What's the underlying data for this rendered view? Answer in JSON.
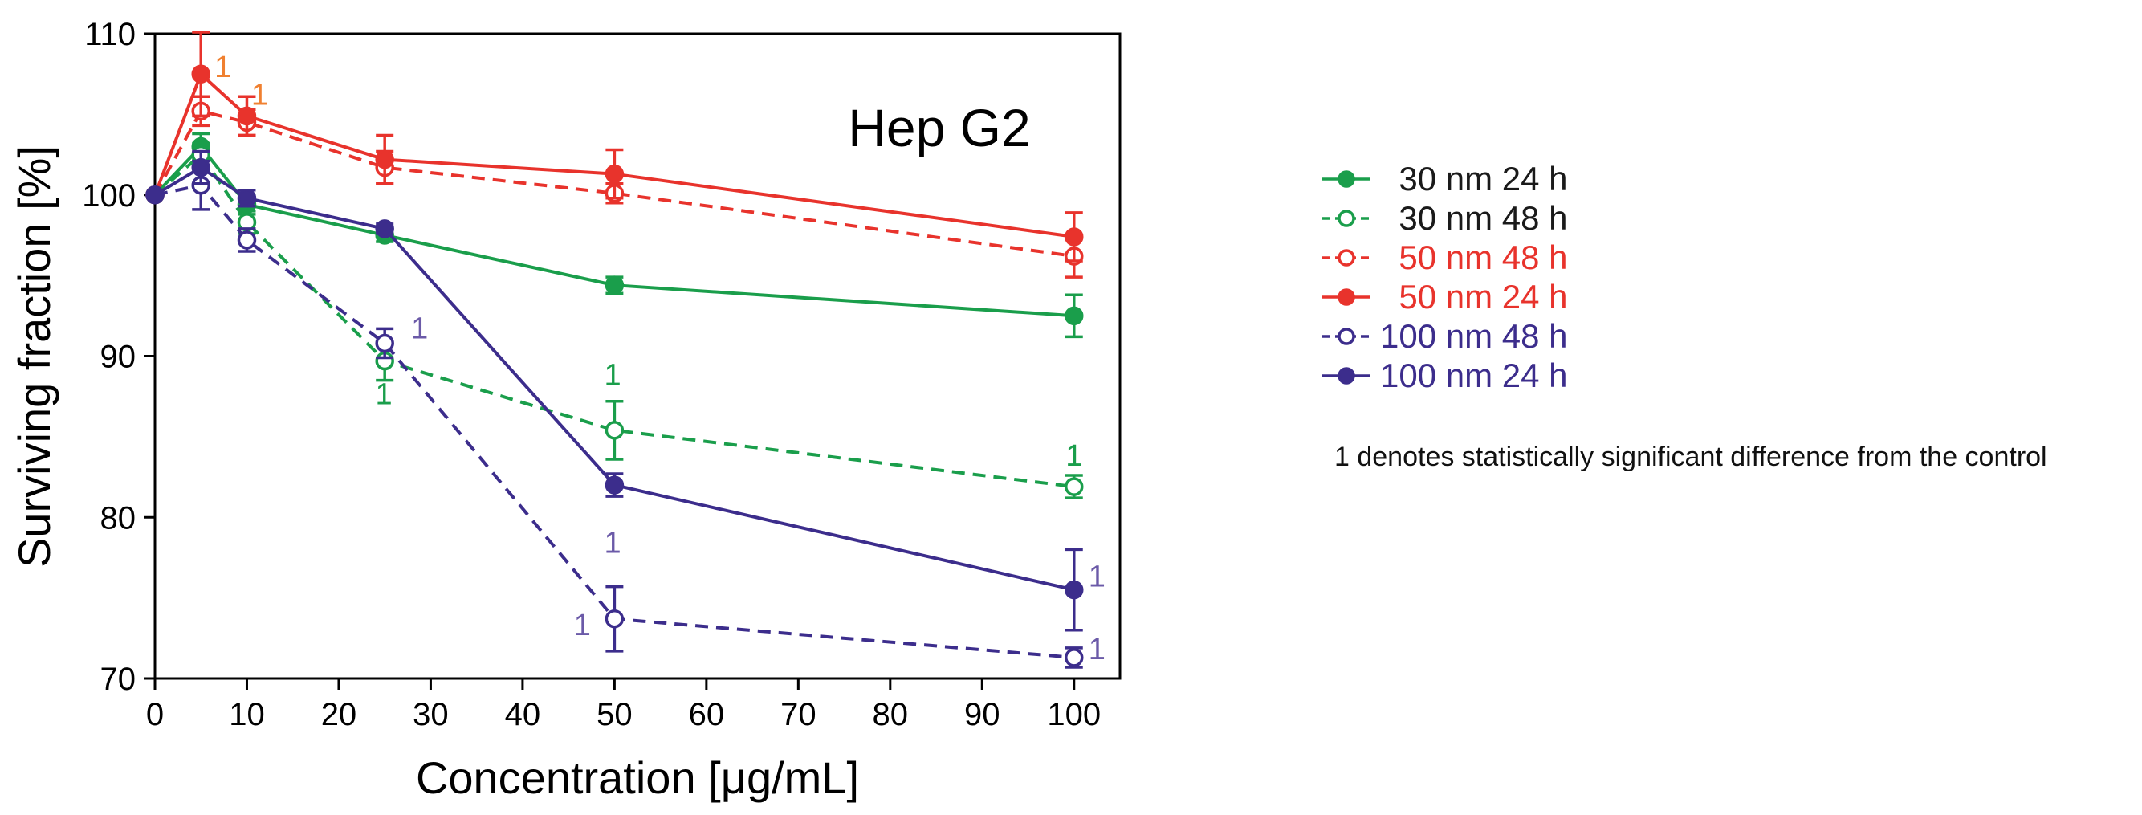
{
  "chart_data": {
    "type": "line",
    "panel_title": "Hep G2",
    "xlabel": "Concentration [μg/mL]",
    "ylabel": "Surviving fraction [%]",
    "xlim": [
      0,
      105
    ],
    "ylim": [
      70,
      110
    ],
    "x_ticks": [
      0,
      10,
      20,
      30,
      40,
      50,
      60,
      70,
      80,
      90,
      100
    ],
    "y_ticks": [
      70,
      80,
      90,
      100,
      110
    ],
    "x": [
      0,
      5,
      10,
      25,
      50,
      100
    ],
    "series": [
      {
        "name": "30 nm 24 h",
        "label": "  30 nm 24 h",
        "color": "#1a9e4b",
        "marker": "filled",
        "dash": false,
        "values": [
          100,
          103.0,
          99.4,
          97.5,
          94.4,
          92.5
        ],
        "errors": [
          0,
          0.8,
          0.6,
          0.4,
          0.5,
          1.3
        ]
      },
      {
        "name": "30 nm 48 h",
        "label": "  30 nm 48 h",
        "color": "#1a9e4b",
        "marker": "open",
        "dash": true,
        "values": [
          100,
          102.5,
          98.3,
          89.7,
          85.4,
          81.9
        ],
        "errors": [
          0,
          0.7,
          0.7,
          1.2,
          1.8,
          0.7
        ]
      },
      {
        "name": "50 nm 48 h",
        "label": "  50 nm 48 h",
        "color": "#e8332c",
        "marker": "open",
        "dash": true,
        "values": [
          100,
          105.2,
          104.5,
          101.7,
          100.1,
          96.2
        ],
        "errors": [
          0,
          0.9,
          0.8,
          1.0,
          0.6,
          1.3
        ]
      },
      {
        "name": "50 nm 24 h",
        "label": "  50 nm 24 h",
        "color": "#e8332c",
        "marker": "filled",
        "dash": false,
        "values": [
          100,
          107.5,
          104.9,
          102.2,
          101.3,
          97.4
        ],
        "errors": [
          0,
          2.6,
          1.2,
          1.5,
          1.5,
          1.5
        ]
      },
      {
        "name": "100 nm 48 h",
        "label": "100 nm 48 h",
        "color": "#3c2d8c",
        "marker": "open",
        "dash": true,
        "values": [
          100,
          100.6,
          97.2,
          90.8,
          73.7,
          71.3
        ],
        "errors": [
          0,
          1.5,
          0.7,
          0.9,
          2.0,
          0.6
        ]
      },
      {
        "name": "100 nm 24 h",
        "label": "100 nm 24 h",
        "color": "#3c2d8c",
        "marker": "filled",
        "dash": false,
        "values": [
          100,
          101.7,
          99.8,
          97.9,
          82.0,
          75.5
        ],
        "errors": [
          0,
          1.0,
          0.5,
          0.3,
          0.7,
          2.5
        ]
      }
    ],
    "annotations": [
      {
        "text": "1",
        "x": 7.4,
        "y": 107.9,
        "color": "#f08030"
      },
      {
        "text": "1",
        "x": 11.4,
        "y": 106.2,
        "color": "#f08030"
      },
      {
        "text": "1",
        "x": 28.8,
        "y": 91.7,
        "color": "#6b5aa8"
      },
      {
        "text": "1",
        "x": 24.9,
        "y": 87.6,
        "color": "#1a9e4b"
      },
      {
        "text": "1",
        "x": 49.8,
        "y": 88.8,
        "color": "#1a9e4b"
      },
      {
        "text": "1",
        "x": 100.0,
        "y": 83.8,
        "color": "#1a9e4b"
      },
      {
        "text": "1",
        "x": 49.8,
        "y": 78.4,
        "color": "#6b5aa8"
      },
      {
        "text": "1",
        "x": 46.5,
        "y": 73.3,
        "color": "#6b5aa8"
      },
      {
        "text": "1",
        "x": 102.5,
        "y": 76.3,
        "color": "#6b5aa8"
      },
      {
        "text": "1",
        "x": 102.5,
        "y": 71.8,
        "color": "#6b5aa8"
      }
    ],
    "legend_position": "right",
    "note": "1 denotes statistically significant difference from the control"
  }
}
